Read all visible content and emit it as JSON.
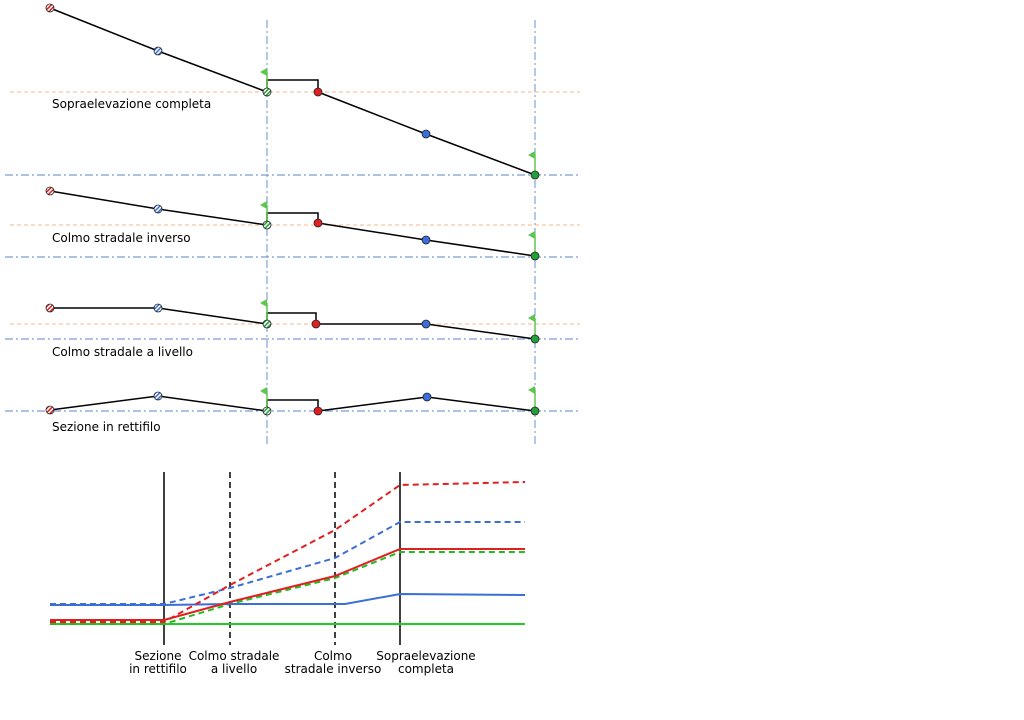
{
  "sections": [
    {
      "label": "Sopraelevazione completa"
    },
    {
      "label": "Colmo stradale inverso"
    },
    {
      "label": "Colmo stradale a livello"
    },
    {
      "label": "Sezione in rettifilo"
    }
  ],
  "profile_labels": [
    [
      "Sezione",
      "in rettifilo"
    ],
    [
      "Colmo stradale",
      "a livello"
    ],
    [
      "Colmo",
      "stradale inverso"
    ],
    [
      "Sopraelevazione",
      "completa"
    ]
  ]
}
